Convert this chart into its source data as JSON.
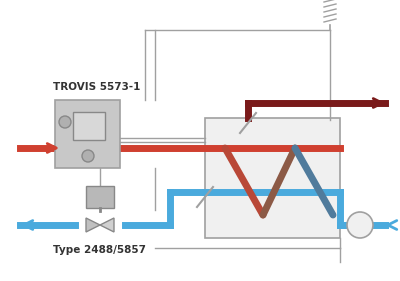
{
  "bg_color": "#ffffff",
  "gc": "#a0a0a0",
  "rc": "#d04030",
  "bc": "#4aaadd",
  "dr": "#7a1a1a",
  "figsize": [
    4.0,
    2.81
  ],
  "dpi": 100,
  "title_text": "TROVIS 5573-1",
  "label_text": "Type 2488/5857"
}
